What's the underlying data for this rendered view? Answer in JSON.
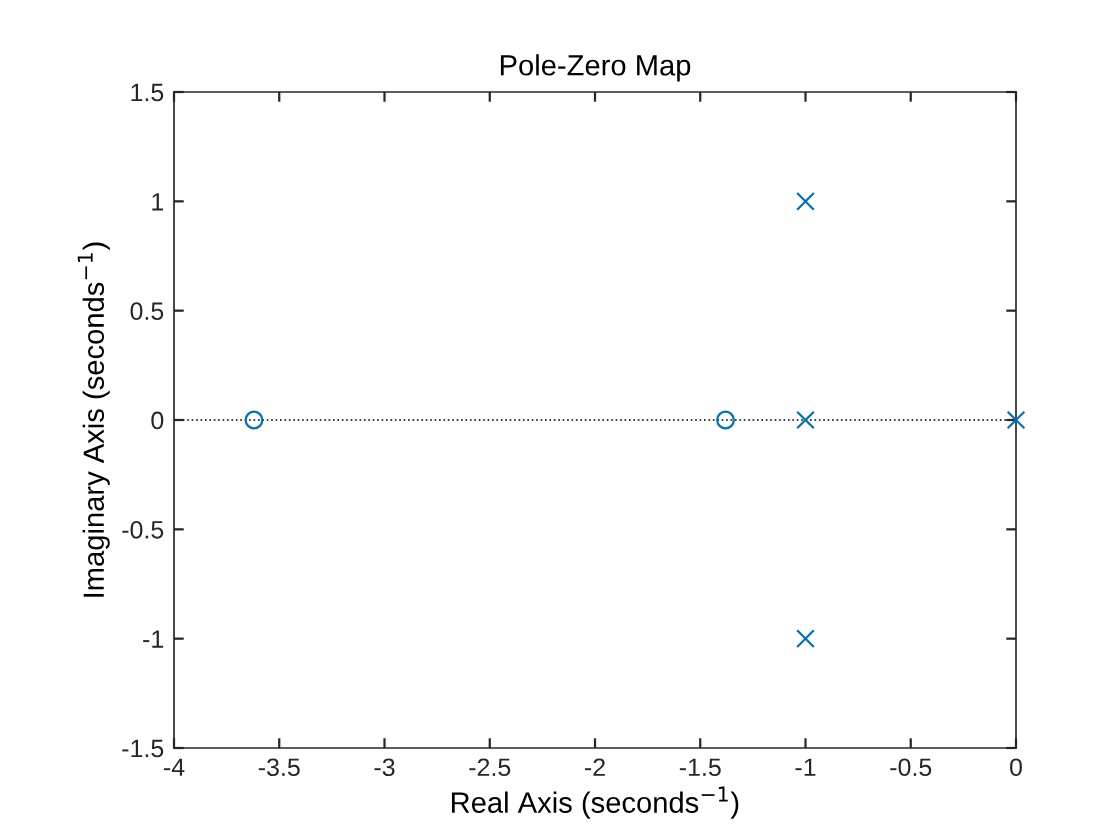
{
  "chart_data": {
    "type": "scatter",
    "title": "Pole-Zero Map",
    "xlabel": "Real Axis (seconds$^{−1}$)",
    "ylabel": "Imaginary Axis (seconds$^{−1}$)",
    "series": [
      {
        "color": "#0072bd",
        "marker": "circle",
        "x": [
          -3.62,
          -1.38
        ],
        "values": [
          0,
          0
        ]
      },
      {
        "color": "#0072bd",
        "marker": "cross",
        "x": [
          -1,
          -1,
          -1,
          0
        ],
        "values": [
          1,
          0,
          -1,
          0
        ]
      }
    ],
    "ref_lines": [
      {
        "axis": "y",
        "value": 0,
        "color": "#000000",
        "line_style": "dotted"
      }
    ],
    "xlim": [
      -4,
      0
    ],
    "ylim": [
      -1.5,
      1.5
    ],
    "xticks": [
      -4,
      -3.5,
      -3,
      -2.5,
      -2,
      -1.5,
      -1,
      -0.5,
      0
    ],
    "yticks": [
      -1.5,
      -1,
      -0.5,
      0,
      0.5,
      1,
      1.5
    ],
    "grid": false,
    "legend": false
  }
}
